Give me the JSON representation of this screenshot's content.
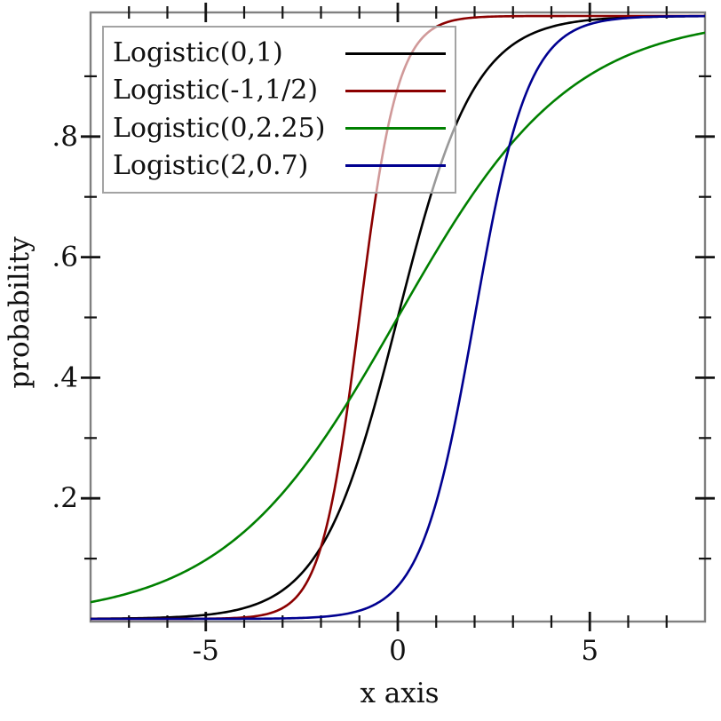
{
  "chart_data": {
    "type": "line",
    "title": "",
    "xlabel": "x axis",
    "ylabel": "probability",
    "xlim": [
      -8,
      8
    ],
    "ylim": [
      0,
      1
    ],
    "grid": false,
    "legend_position": "top-left",
    "function": "y = 1/(1+exp(-(x-mu)/s))  (logistic CDF)",
    "x_axis": {
      "major_ticks": [
        {
          "value": -5,
          "label": "-5"
        },
        {
          "value": 0,
          "label": "0"
        },
        {
          "value": 5,
          "label": "5"
        }
      ],
      "minor_tick_values": [
        -7,
        -6,
        -4,
        -3,
        -2,
        -1,
        1,
        2,
        3,
        4,
        6,
        7
      ]
    },
    "y_axis": {
      "major_ticks": [
        {
          "value": 0.2,
          "label": ".2"
        },
        {
          "value": 0.4,
          "label": ".4"
        },
        {
          "value": 0.6,
          "label": ".6"
        },
        {
          "value": 0.8,
          "label": ".8"
        }
      ],
      "minor_tick_values": [
        0.1,
        0.3,
        0.5,
        0.7,
        0.9
      ]
    },
    "series": [
      {
        "label": "Logistic(0,1)",
        "mu": 0,
        "s": 1,
        "color": "#000000"
      },
      {
        "label": "Logistic(-1,1/2)",
        "mu": -1,
        "s": 0.5,
        "color": "#8b0000"
      },
      {
        "label": "Logistic(0,2.25)",
        "mu": 0,
        "s": 2.25,
        "color": "#008000"
      },
      {
        "label": "Logistic(2,0.7)",
        "mu": 2,
        "s": 0.7,
        "color": "#000090"
      }
    ]
  },
  "style_colors": {
    "frame": "#808080",
    "ticks": "#141414",
    "text": "#111111",
    "legend_border": "#a3a3a3"
  }
}
